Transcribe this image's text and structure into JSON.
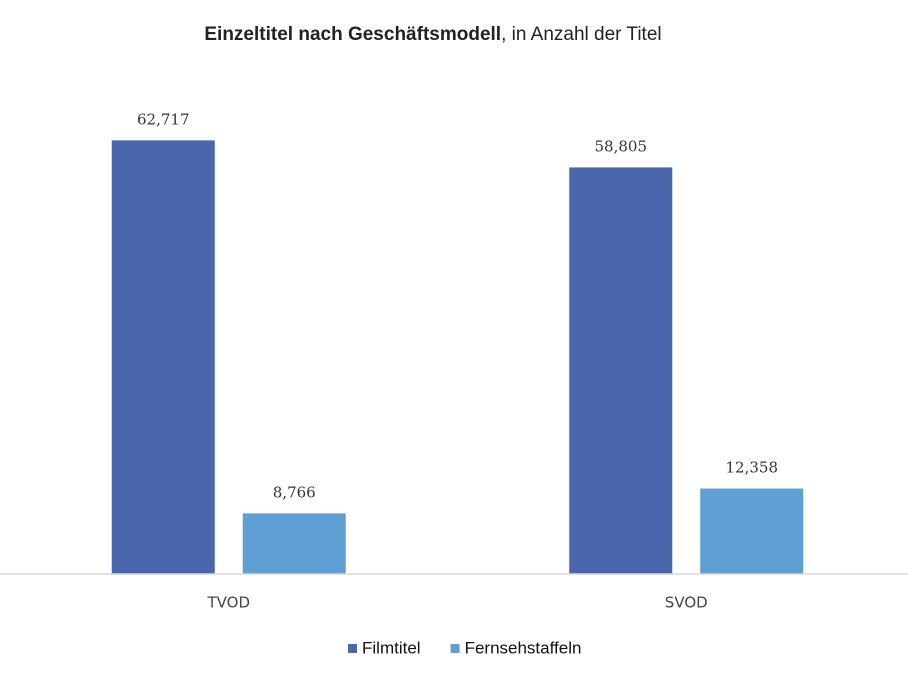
{
  "chart_data": {
    "type": "bar",
    "title": "Einzeltitel nach Geschäftsmodell",
    "subtitle": ", in Anzahl der Titel",
    "categories": [
      "TVOD",
      "SVOD"
    ],
    "series": [
      {
        "name": "Filmtitel",
        "color": "#4a67ae",
        "values": [
          62717,
          58805
        ],
        "value_labels": [
          "62,717",
          "58,805"
        ]
      },
      {
        "name": "Fernsehstaffeln",
        "color": "#5f9fd3",
        "values": [
          8766,
          12358
        ],
        "value_labels": [
          "8,766",
          "12,358"
        ]
      }
    ],
    "ylim": [
      0,
      70000
    ],
    "legend": "bottom"
  }
}
